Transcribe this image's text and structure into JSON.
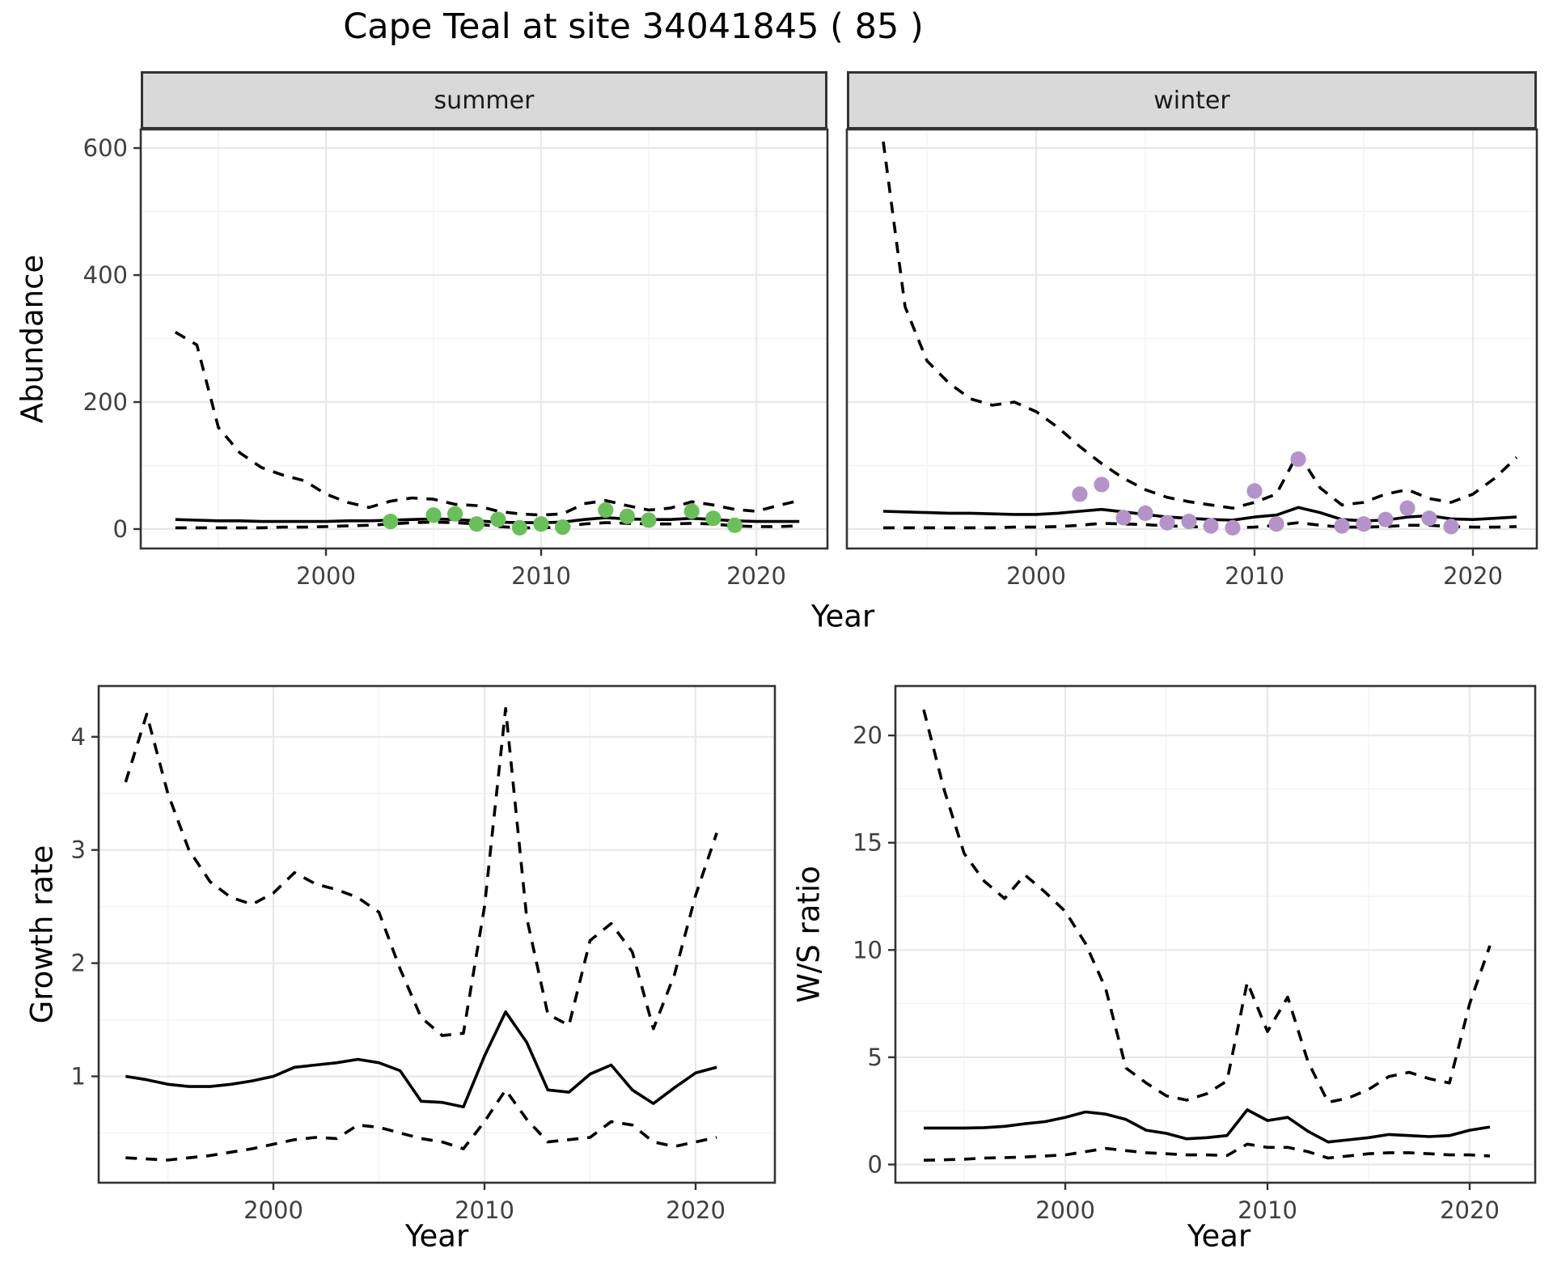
{
  "page": {
    "title": "Cape Teal at site 34041845 ( 85 )"
  },
  "labels": {
    "facet_summer": "summer",
    "facet_winter": "winter",
    "abundance_ylabel": "Abundance",
    "top_xlabel": "Year",
    "growth_ylabel": "Growth rate",
    "growth_xlabel": "Year",
    "ws_ylabel": "W/S ratio",
    "ws_xlabel": "Year"
  },
  "colors": {
    "summer_points": "#6abf5b",
    "winter_points": "#b494c8",
    "line": "#000000",
    "strip_bg": "#d9d9d9",
    "panel_border": "#333333",
    "grid_major": "#e8e8e8",
    "grid_minor": "#f3f3f3",
    "tick_label": "#404040"
  },
  "chart_data": [
    {
      "type": "line",
      "panel": "summer",
      "title": "summer",
      "xlabel": "Year",
      "ylabel": "Abundance",
      "xlim": [
        1991.4,
        2023.4
      ],
      "ylim": [
        -15,
        629
      ],
      "x_ticks": [
        2000,
        2010,
        2020
      ],
      "y_ticks": [
        0,
        200,
        400,
        600
      ],
      "x_minor": [
        1995,
        2005,
        2015
      ],
      "y_minor": [
        100,
        300,
        500
      ],
      "show_y_axis": true,
      "x": [
        1993,
        1994,
        1995,
        1996,
        1997,
        1998,
        1999,
        2000,
        2001,
        2002,
        2003,
        2004,
        2005,
        2006,
        2007,
        2008,
        2009,
        2010,
        2011,
        2012,
        2013,
        2014,
        2015,
        2016,
        2017,
        2018,
        2019,
        2020,
        2021,
        2022
      ],
      "series": [
        {
          "name": "fit",
          "style": "solid",
          "values": [
            15,
            14,
            13,
            13,
            12,
            12,
            12,
            12,
            13,
            13,
            14,
            15,
            16,
            15,
            13,
            11,
            10,
            10,
            11,
            15,
            18,
            16,
            15,
            15,
            17,
            15,
            13,
            12,
            12,
            12
          ]
        },
        {
          "name": "upper-ci",
          "style": "dashed",
          "values": [
            310,
            290,
            160,
            120,
            97,
            85,
            76,
            55,
            42,
            34,
            44,
            49,
            47,
            39,
            37,
            28,
            24,
            22,
            24,
            40,
            45,
            37,
            30,
            33,
            43,
            38,
            31,
            28,
            37,
            45
          ]
        },
        {
          "name": "lower-ci",
          "style": "dashed",
          "values": [
            2,
            2,
            2,
            2,
            2,
            3,
            3,
            4,
            5,
            6,
            8,
            10,
            11,
            10,
            8,
            4,
            2,
            2,
            3,
            8,
            10,
            9,
            8,
            8,
            9,
            8,
            5,
            4,
            4,
            5
          ]
        }
      ],
      "points": {
        "name": "observed-counts",
        "color": "#6abf5b",
        "x": [
          2003,
          2005,
          2006,
          2007,
          2008,
          2009,
          2010,
          2011,
          2013,
          2014,
          2015,
          2017,
          2018,
          2019
        ],
        "y": [
          12,
          22,
          24,
          8,
          15,
          2,
          8,
          3,
          30,
          20,
          14,
          28,
          17,
          6
        ]
      }
    },
    {
      "type": "line",
      "panel": "winter",
      "title": "winter",
      "xlabel": "Year",
      "ylabel": "Abundance",
      "xlim": [
        1991.3,
        2023.3
      ],
      "ylim": [
        -15,
        629
      ],
      "x_ticks": [
        2000,
        2010,
        2020
      ],
      "y_ticks": [
        0,
        200,
        400,
        600
      ],
      "x_minor": [
        1995,
        2005,
        2015
      ],
      "y_minor": [
        100,
        300,
        500
      ],
      "show_y_axis": false,
      "x": [
        1993,
        1994,
        1995,
        1996,
        1997,
        1998,
        1999,
        2000,
        2001,
        2002,
        2003,
        2004,
        2005,
        2006,
        2007,
        2008,
        2009,
        2010,
        2011,
        2012,
        2013,
        2014,
        2015,
        2016,
        2017,
        2018,
        2019,
        2020,
        2021,
        2022
      ],
      "series": [
        {
          "name": "fit",
          "style": "solid",
          "values": [
            28,
            27,
            26,
            25,
            25,
            24,
            23,
            23,
            25,
            28,
            31,
            27,
            23,
            19,
            17,
            15,
            14,
            19,
            22,
            34,
            26,
            15,
            13,
            14,
            19,
            21,
            16,
            15,
            17,
            19
          ]
        },
        {
          "name": "upper-ci",
          "style": "dashed",
          "values": [
            610,
            350,
            265,
            230,
            205,
            195,
            200,
            185,
            160,
            130,
            103,
            80,
            62,
            50,
            43,
            38,
            33,
            42,
            55,
            120,
            65,
            38,
            42,
            55,
            62,
            48,
            42,
            55,
            80,
            113
          ]
        },
        {
          "name": "lower-ci",
          "style": "dashed",
          "values": [
            2,
            2,
            2,
            2,
            2,
            2,
            3,
            3,
            4,
            6,
            9,
            8,
            7,
            5,
            4,
            3,
            2,
            3,
            6,
            10,
            6,
            3,
            3,
            4,
            6,
            6,
            4,
            3,
            3,
            4
          ]
        }
      ],
      "points": {
        "name": "observed-counts",
        "color": "#b494c8",
        "x": [
          2002,
          2003,
          2004,
          2005,
          2006,
          2007,
          2008,
          2009,
          2010,
          2011,
          2012,
          2014,
          2015,
          2016,
          2017,
          2018,
          2019
        ],
        "y": [
          55,
          70,
          18,
          25,
          10,
          12,
          5,
          2,
          60,
          8,
          110,
          5,
          8,
          15,
          33,
          17,
          4
        ]
      }
    },
    {
      "type": "line",
      "panel": "growth-rate",
      "title": "Growth rate",
      "xlabel": "Year",
      "ylabel": "Growth rate",
      "xlim": [
        1991.7,
        2023.8
      ],
      "ylim": [
        0.06,
        4.45
      ],
      "x_ticks": [
        2000,
        2010,
        2020
      ],
      "y_ticks": [
        1,
        2,
        3,
        4
      ],
      "x_minor": [
        1995,
        2005,
        2015
      ],
      "y_minor": [
        0.5,
        1.5,
        2.5,
        3.5
      ],
      "show_y_axis": true,
      "x": [
        1993,
        1994,
        1995,
        1996,
        1997,
        1998,
        1999,
        2000,
        2001,
        2002,
        2003,
        2004,
        2005,
        2006,
        2007,
        2008,
        2009,
        2010,
        2011,
        2012,
        2013,
        2014,
        2015,
        2016,
        2017,
        2018,
        2019,
        2020,
        2021
      ],
      "series": [
        {
          "name": "fit",
          "style": "solid",
          "values": [
            1.0,
            0.97,
            0.93,
            0.91,
            0.91,
            0.93,
            0.96,
            1.0,
            1.08,
            1.1,
            1.12,
            1.15,
            1.12,
            1.05,
            0.78,
            0.77,
            0.73,
            1.18,
            1.57,
            1.3,
            0.88,
            0.86,
            1.02,
            1.1,
            0.88,
            0.76,
            0.9,
            1.03,
            1.08
          ]
        },
        {
          "name": "upper-ci",
          "style": "dashed",
          "values": [
            3.6,
            4.2,
            3.5,
            3.0,
            2.72,
            2.58,
            2.52,
            2.62,
            2.8,
            2.7,
            2.65,
            2.58,
            2.45,
            1.95,
            1.52,
            1.36,
            1.38,
            2.5,
            4.25,
            2.4,
            1.55,
            1.45,
            2.2,
            2.35,
            2.1,
            1.42,
            1.9,
            2.6,
            3.15
          ]
        },
        {
          "name": "lower-ci",
          "style": "dashed",
          "values": [
            0.28,
            0.27,
            0.26,
            0.28,
            0.3,
            0.33,
            0.36,
            0.4,
            0.44,
            0.46,
            0.45,
            0.57,
            0.55,
            0.5,
            0.45,
            0.42,
            0.36,
            0.6,
            0.88,
            0.62,
            0.42,
            0.44,
            0.46,
            0.6,
            0.57,
            0.42,
            0.38,
            0.42,
            0.46
          ]
        }
      ],
      "points": null
    },
    {
      "type": "line",
      "panel": "ws-ratio",
      "title": "W/S ratio",
      "xlabel": "Year",
      "ylabel": "W/S ratio",
      "xlim": [
        1991.6,
        2023.2
      ],
      "ylim": [
        -0.85,
        22.3
      ],
      "x_ticks": [
        2000,
        2010,
        2020
      ],
      "y_ticks": [
        0,
        5,
        10,
        15,
        20
      ],
      "x_minor": [
        1995,
        2005,
        2015
      ],
      "y_minor": [
        2.5,
        7.5,
        12.5,
        17.5
      ],
      "show_y_axis": true,
      "x": [
        1993,
        1994,
        1995,
        1996,
        1997,
        1998,
        1999,
        2000,
        2001,
        2002,
        2003,
        2004,
        2005,
        2006,
        2007,
        2008,
        2009,
        2010,
        2011,
        2012,
        2013,
        2014,
        2015,
        2016,
        2017,
        2018,
        2019,
        2020,
        2021
      ],
      "series": [
        {
          "name": "fit",
          "style": "solid",
          "values": [
            1.7,
            1.7,
            1.7,
            1.72,
            1.78,
            1.9,
            2.0,
            2.2,
            2.45,
            2.35,
            2.1,
            1.6,
            1.45,
            1.2,
            1.25,
            1.35,
            2.55,
            2.05,
            2.2,
            1.55,
            1.05,
            1.15,
            1.25,
            1.4,
            1.35,
            1.3,
            1.35,
            1.6,
            1.75
          ]
        },
        {
          "name": "upper-ci",
          "style": "dashed",
          "values": [
            21.2,
            17.5,
            14.5,
            13.2,
            12.4,
            13.5,
            12.7,
            11.8,
            10.3,
            8.2,
            4.5,
            3.8,
            3.2,
            3.0,
            3.3,
            3.9,
            8.5,
            6.2,
            7.8,
            4.8,
            2.9,
            3.1,
            3.5,
            4.1,
            4.3,
            4.0,
            3.8,
            7.5,
            10.2
          ]
        },
        {
          "name": "lower-ci",
          "style": "dashed",
          "values": [
            0.2,
            0.22,
            0.25,
            0.3,
            0.32,
            0.35,
            0.4,
            0.45,
            0.6,
            0.75,
            0.65,
            0.55,
            0.5,
            0.45,
            0.45,
            0.42,
            0.95,
            0.8,
            0.8,
            0.6,
            0.3,
            0.4,
            0.5,
            0.55,
            0.55,
            0.5,
            0.45,
            0.45,
            0.4
          ]
        }
      ],
      "points": null
    }
  ]
}
